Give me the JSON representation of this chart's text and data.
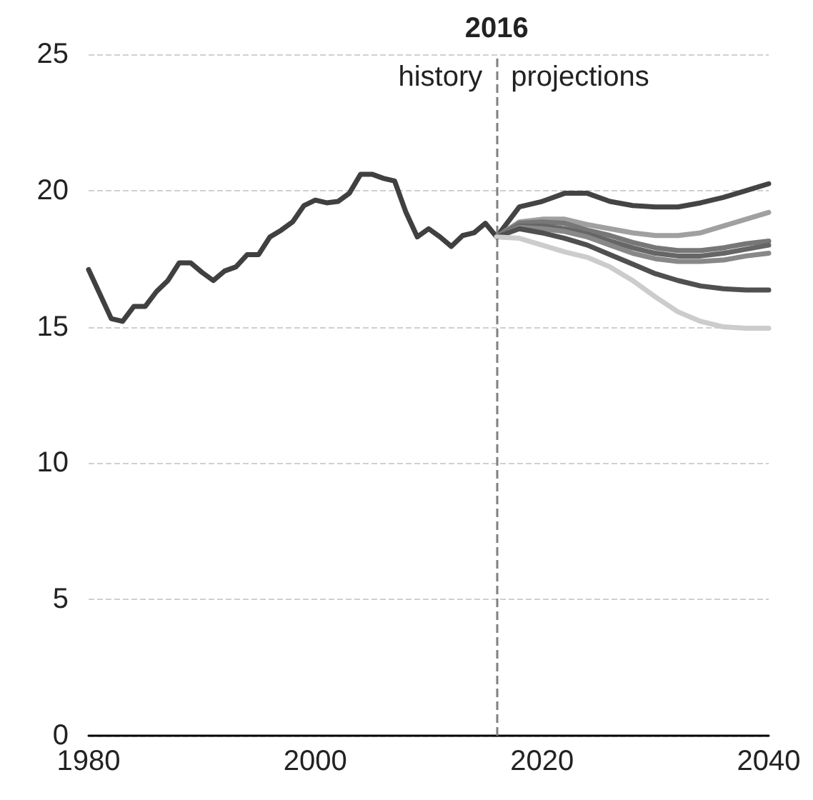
{
  "chart_data": {
    "type": "line",
    "xlim": [
      1980,
      2040
    ],
    "xticks": [
      1980,
      2000,
      2020,
      2040
    ],
    "ylim": [
      0,
      25
    ],
    "yticks": [
      0,
      5,
      10,
      15,
      20,
      25
    ],
    "grid": "y",
    "marker": "none",
    "line_style": "solid",
    "ref_lines": [
      {
        "axis": "x",
        "value": 2016,
        "label": "2016",
        "color": "#808080",
        "line_style": "dashed"
      }
    ],
    "annotations": [
      "history",
      "projections"
    ],
    "series": [
      {
        "color": "#404040",
        "x": [
          1980,
          1981,
          1982,
          1983,
          1984,
          1985,
          1986,
          1987,
          1988,
          1989,
          1990,
          1991,
          1992,
          1993,
          1994,
          1995,
          1996,
          1997,
          1998,
          1999,
          2000,
          2001,
          2002,
          2003,
          2004,
          2005,
          2006,
          2007,
          2008,
          2009,
          2010,
          2011,
          2012,
          2013,
          2014,
          2015,
          2016
        ],
        "values": [
          17.1,
          16.2,
          15.3,
          15.2,
          15.75,
          15.75,
          16.3,
          16.7,
          17.35,
          17.35,
          17.0,
          16.7,
          17.05,
          17.2,
          17.65,
          17.65,
          18.3,
          18.55,
          18.85,
          19.45,
          19.65,
          19.55,
          19.6,
          19.9,
          20.6,
          20.6,
          20.45,
          20.35,
          19.2,
          18.3,
          18.6,
          18.3,
          17.95,
          18.35,
          18.45,
          18.8,
          18.3
        ]
      },
      {
        "color": "#444444",
        "x": [
          2016,
          2018,
          2020,
          2022,
          2024,
          2026,
          2028,
          2030,
          2032,
          2034,
          2036,
          2038,
          2040
        ],
        "values": [
          18.3,
          19.4,
          19.6,
          19.9,
          19.9,
          19.6,
          19.45,
          19.4,
          19.4,
          19.55,
          19.75,
          20.0,
          20.25
        ]
      },
      {
        "color": "#a0a0a0",
        "x": [
          2016,
          2018,
          2020,
          2022,
          2024,
          2026,
          2028,
          2030,
          2032,
          2034,
          2036,
          2038,
          2040
        ],
        "values": [
          18.3,
          18.85,
          18.95,
          18.95,
          18.75,
          18.6,
          18.45,
          18.35,
          18.35,
          18.45,
          18.7,
          18.95,
          19.2
        ]
      },
      {
        "color": "#777777",
        "x": [
          2016,
          2018,
          2020,
          2022,
          2024,
          2026,
          2028,
          2030,
          2032,
          2034,
          2036,
          2038,
          2040
        ],
        "values": [
          18.3,
          18.8,
          18.85,
          18.8,
          18.55,
          18.35,
          18.1,
          17.9,
          17.8,
          17.8,
          17.9,
          18.05,
          18.15
        ]
      },
      {
        "color": "#666666",
        "x": [
          2016,
          2018,
          2020,
          2022,
          2024,
          2026,
          2028,
          2030,
          2032,
          2034,
          2036,
          2038,
          2040
        ],
        "values": [
          18.3,
          18.7,
          18.7,
          18.6,
          18.4,
          18.15,
          17.9,
          17.7,
          17.6,
          17.6,
          17.7,
          17.85,
          18.0
        ]
      },
      {
        "color": "#888888",
        "x": [
          2016,
          2018,
          2020,
          2022,
          2024,
          2026,
          2028,
          2030,
          2032,
          2034,
          2036,
          2038,
          2040
        ],
        "values": [
          18.3,
          18.65,
          18.6,
          18.5,
          18.3,
          18.0,
          17.7,
          17.5,
          17.4,
          17.4,
          17.45,
          17.6,
          17.7
        ]
      },
      {
        "color": "#505050",
        "x": [
          2016,
          2018,
          2020,
          2022,
          2024,
          2026,
          2028,
          2030,
          2032,
          2034,
          2036,
          2038,
          2040
        ],
        "values": [
          18.3,
          18.6,
          18.45,
          18.25,
          18.0,
          17.65,
          17.3,
          16.95,
          16.7,
          16.5,
          16.4,
          16.35,
          16.35
        ]
      },
      {
        "color": "#cccccc",
        "x": [
          2016,
          2018,
          2020,
          2022,
          2024,
          2026,
          2028,
          2030,
          2032,
          2034,
          2036,
          2038,
          2040
        ],
        "values": [
          18.3,
          18.25,
          18.0,
          17.75,
          17.55,
          17.2,
          16.7,
          16.1,
          15.55,
          15.2,
          15.0,
          14.95,
          14.95
        ]
      }
    ]
  }
}
